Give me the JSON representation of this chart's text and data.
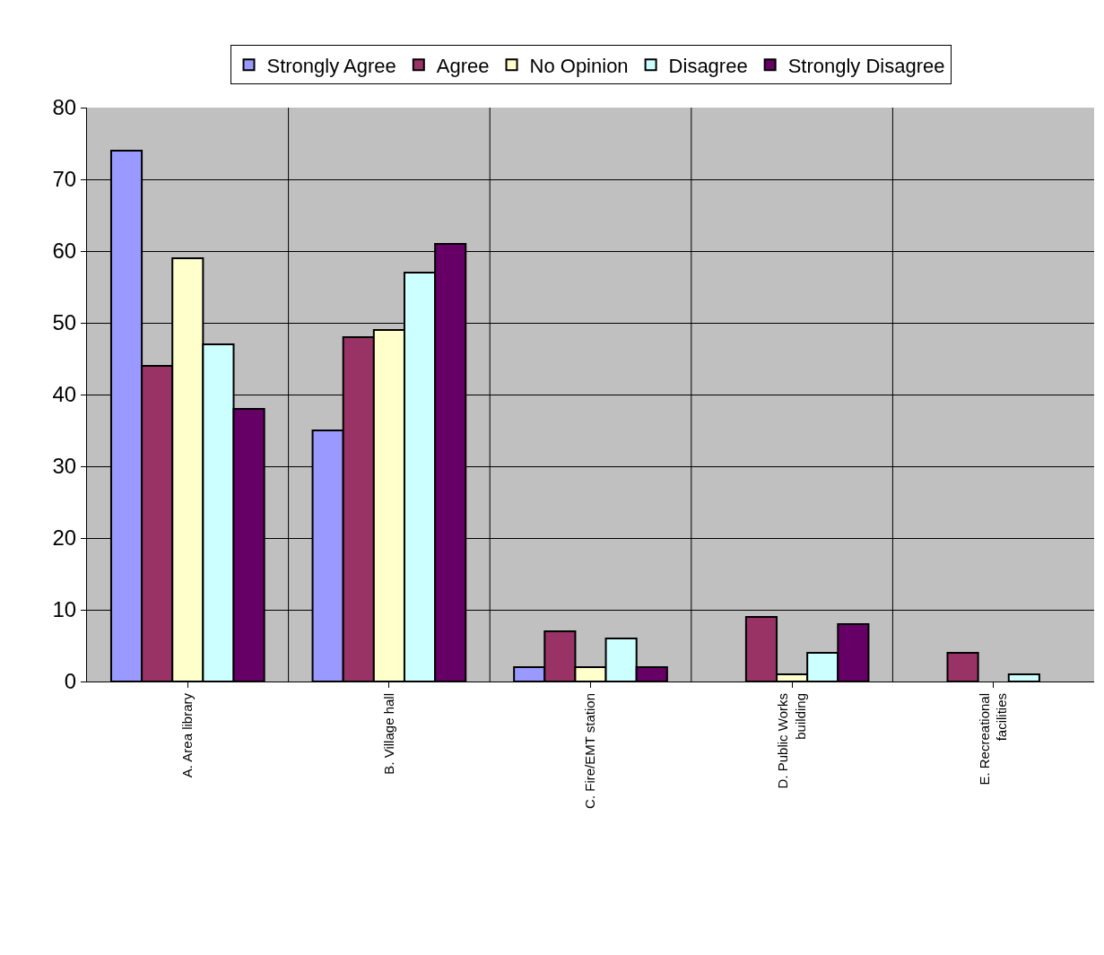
{
  "chart_data": {
    "type": "bar",
    "categories": [
      "A. Area library",
      "B. Village hall",
      "C. Fire/EMT station",
      "D. Public Works building",
      "E. Recreational facilities"
    ],
    "series": [
      {
        "name": "Strongly Agree",
        "color": "#9999ff",
        "values": [
          74,
          35,
          2,
          null,
          null
        ]
      },
      {
        "name": "Agree",
        "color": "#993366",
        "values": [
          44,
          48,
          7,
          9,
          4
        ]
      },
      {
        "name": "No Opinion",
        "color": "#ffffcc",
        "values": [
          59,
          49,
          2,
          1,
          null
        ]
      },
      {
        "name": "Disagree",
        "color": "#ccffff",
        "values": [
          47,
          57,
          6,
          4,
          1
        ]
      },
      {
        "name": "Strongly Disagree",
        "color": "#660066",
        "values": [
          38,
          61,
          2,
          8,
          null
        ]
      }
    ],
    "ylim": [
      0,
      80
    ],
    "yticks": [
      0,
      10,
      20,
      30,
      40,
      50,
      60,
      70,
      80
    ],
    "grid": true,
    "legend": "top"
  }
}
